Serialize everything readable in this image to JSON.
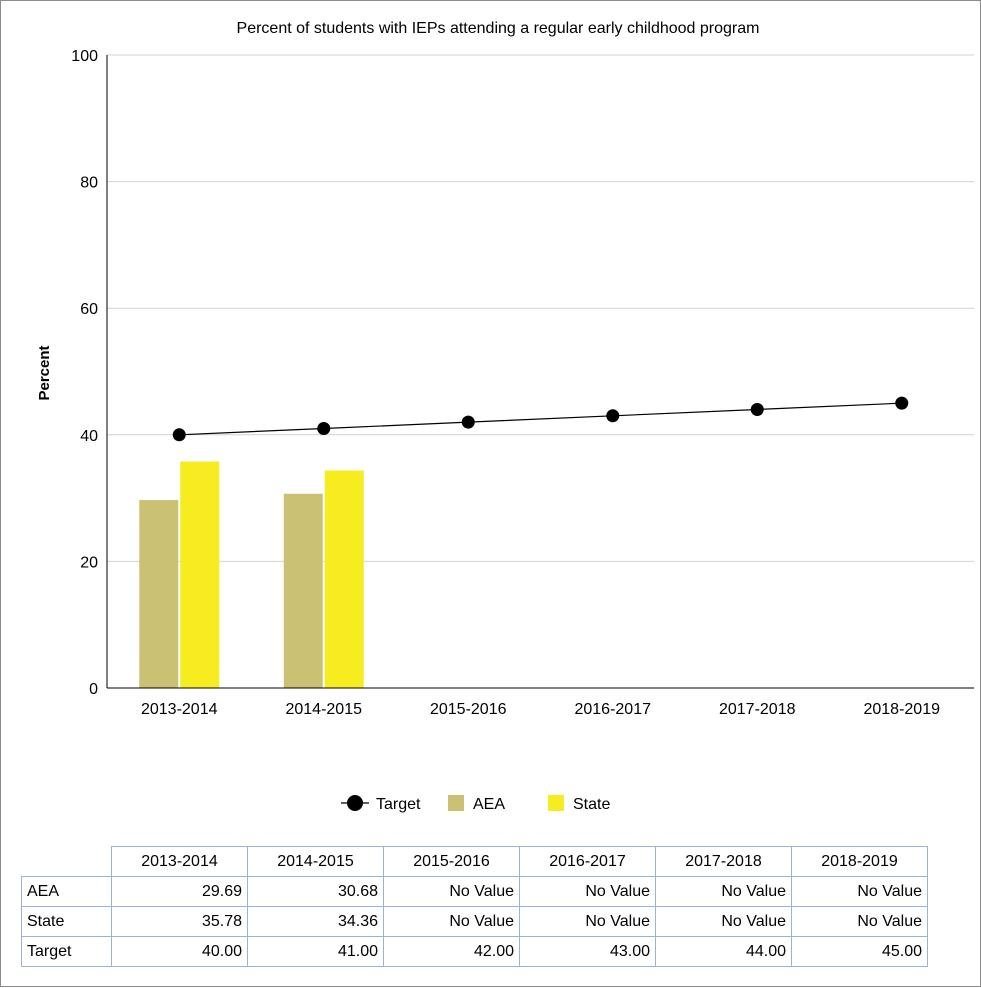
{
  "chart_data": {
    "type": "bar",
    "title": "Percent of students with IEPs attending a regular early childhood program",
    "ylabel": "Percent",
    "xlabel": "",
    "ylim": [
      0,
      100
    ],
    "yticks": [
      0,
      20,
      40,
      60,
      80,
      100
    ],
    "grid": true,
    "legend_placement": "bottom",
    "categories": [
      "2013-2014",
      "2014-2015",
      "2015-2016",
      "2016-2017",
      "2017-2018",
      "2018-2019"
    ],
    "series": [
      {
        "name": "AEA",
        "kind": "bar",
        "color": "#cbc172",
        "values": [
          29.69,
          30.68,
          null,
          null,
          null,
          null
        ]
      },
      {
        "name": "State",
        "kind": "bar",
        "color": "#f7ec1f",
        "values": [
          35.78,
          34.36,
          null,
          null,
          null,
          null
        ]
      },
      {
        "name": "Target",
        "kind": "line-markers",
        "color": "#000000",
        "values": [
          40.0,
          41.0,
          42.0,
          43.0,
          44.0,
          45.0
        ]
      }
    ],
    "legend_order": [
      "Target",
      "AEA",
      "State"
    ]
  },
  "table": {
    "headers": [
      "2013-2014",
      "2014-2015",
      "2015-2016",
      "2016-2017",
      "2017-2018",
      "2018-2019"
    ],
    "rows": [
      {
        "label": "AEA",
        "cells": [
          "29.69",
          "30.68",
          "No Value",
          "No Value",
          "No Value",
          "No Value"
        ]
      },
      {
        "label": "State",
        "cells": [
          "35.78",
          "34.36",
          "No Value",
          "No Value",
          "No Value",
          "No Value"
        ]
      },
      {
        "label": "Target",
        "cells": [
          "40.00",
          "41.00",
          "42.00",
          "43.00",
          "44.00",
          "45.00"
        ]
      }
    ]
  }
}
